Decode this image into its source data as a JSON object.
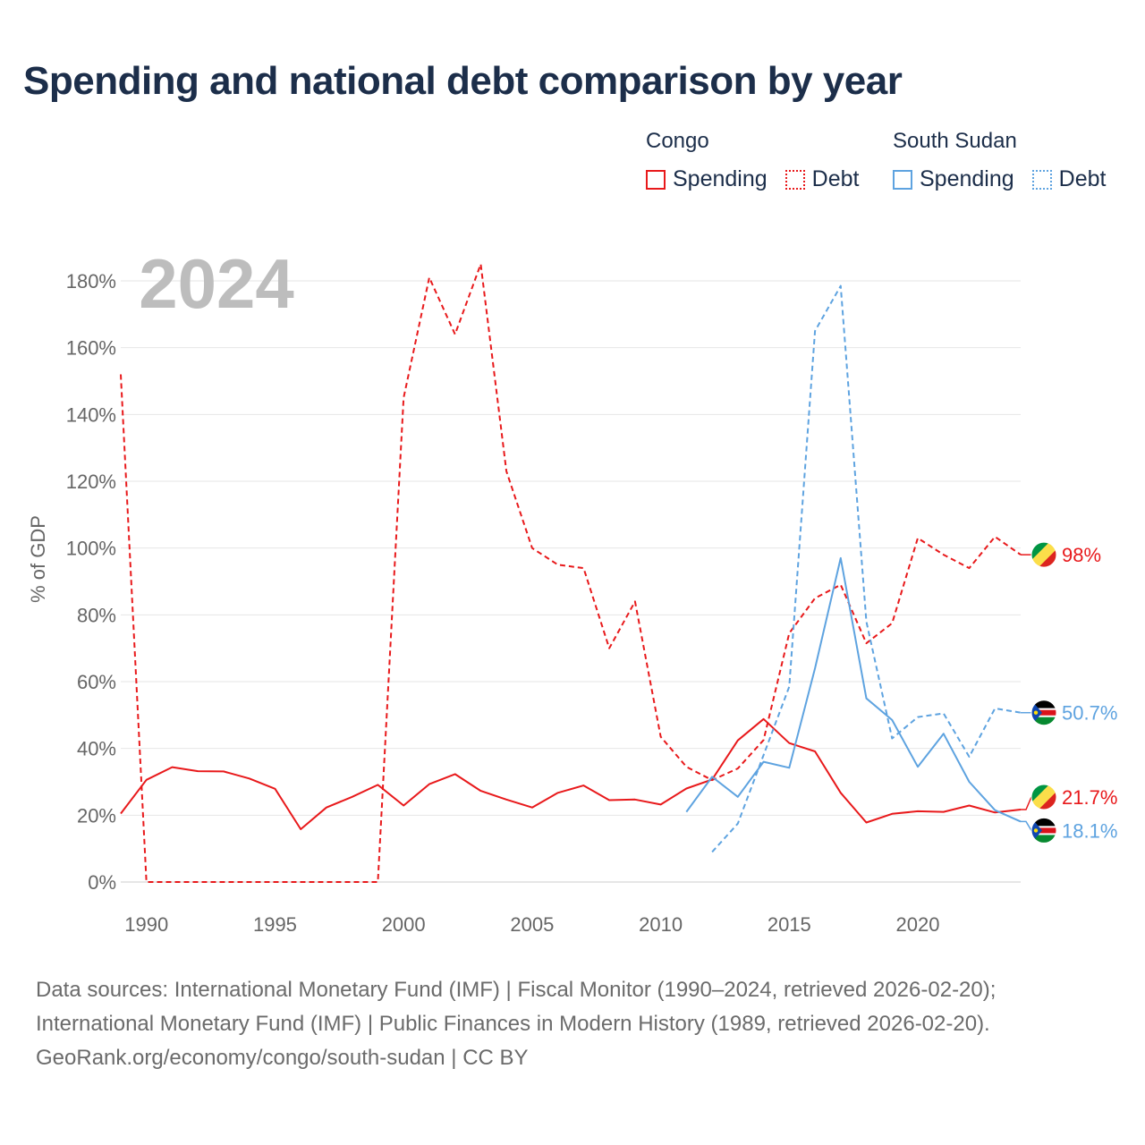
{
  "title": "Spending and national debt comparison by year",
  "legend": {
    "groups": [
      {
        "name": "Congo",
        "color": "#e8191b",
        "items": [
          "Spending",
          "Debt"
        ]
      },
      {
        "name": "South Sudan",
        "color": "#5ea3e0",
        "items": [
          "Spending",
          "Debt"
        ]
      }
    ]
  },
  "source": {
    "line1": "Data sources: International Monetary Fund (IMF) | Fiscal Monitor (1990–2024, retrieved 2026-02-20);",
    "line2": "International Monetary Fund (IMF) | Public Finances in Modern History (1989, retrieved 2026-02-20).",
    "line3": "GeoRank.org/economy/congo/south-sudan | CC BY"
  },
  "chart_data": {
    "type": "line",
    "year_label": "2024",
    "ylabel": "% of GDP",
    "xlim": [
      1989,
      2024
    ],
    "ylim": [
      0,
      180
    ],
    "yticks": [
      0,
      20,
      40,
      60,
      80,
      100,
      120,
      140,
      160,
      180
    ],
    "ytick_labels": [
      "0%",
      "20%",
      "40%",
      "60%",
      "80%",
      "100%",
      "120%",
      "140%",
      "160%",
      "180%"
    ],
    "xticks": [
      1990,
      1995,
      2000,
      2005,
      2010,
      2015,
      2020
    ],
    "xtick_labels": [
      "1990",
      "1995",
      "2000",
      "2005",
      "2010",
      "2015",
      "2020"
    ],
    "series": [
      {
        "name": "Congo Spending",
        "country": "Congo",
        "kind": "Spending",
        "color": "#e8191b",
        "dashed": false,
        "x": [
          1989,
          1990,
          1991,
          1992,
          1993,
          1994,
          1995,
          1996,
          1997,
          1998,
          1999,
          2000,
          2001,
          2002,
          2003,
          2004,
          2005,
          2006,
          2007,
          2008,
          2009,
          2010,
          2011,
          2012,
          2013,
          2014,
          2015,
          2016,
          2017,
          2018,
          2019,
          2020,
          2021,
          2022,
          2023,
          2024
        ],
        "values": [
          20.5,
          30.6,
          34.4,
          33.2,
          33.1,
          31.0,
          27.9,
          15.8,
          22.3,
          25.5,
          29.1,
          22.9,
          29.3,
          32.3,
          27.3,
          24.7,
          22.3,
          26.7,
          28.9,
          24.5,
          24.7,
          23.2,
          28.0,
          30.7,
          42.4,
          48.8,
          41.6,
          39.1,
          26.7,
          17.8,
          20.4,
          21.2,
          21.0,
          22.9,
          20.8,
          21.7
        ],
        "end_label": "21.7%"
      },
      {
        "name": "Congo Debt",
        "country": "Congo",
        "kind": "Debt",
        "color": "#e8191b",
        "dashed": true,
        "x": [
          1989,
          1990,
          1991,
          1992,
          1993,
          1994,
          1995,
          1996,
          1997,
          1998,
          1999,
          2000,
          2001,
          2002,
          2003,
          2004,
          2005,
          2006,
          2007,
          2008,
          2009,
          2010,
          2011,
          2012,
          2013,
          2014,
          2015,
          2016,
          2017,
          2018,
          2019,
          2020,
          2021,
          2022,
          2023,
          2024
        ],
        "values": [
          152,
          0,
          0,
          0,
          0,
          0,
          0,
          0,
          0,
          0,
          0,
          145,
          181,
          164,
          185,
          123,
          100,
          95,
          94,
          70,
          84,
          43.5,
          34.5,
          30.5,
          34,
          42.5,
          74.5,
          85,
          89,
          71.5,
          77.5,
          103,
          98,
          94,
          103.4,
          98
        ],
        "end_label": "98%"
      },
      {
        "name": "South Sudan Spending",
        "country": "South Sudan",
        "kind": "Spending",
        "color": "#5ea3e0",
        "dashed": false,
        "x": [
          2011,
          2012,
          2013,
          2014,
          2015,
          2016,
          2017,
          2018,
          2019,
          2020,
          2021,
          2022,
          2023,
          2024
        ],
        "values": [
          21,
          31.5,
          25.5,
          36,
          34.2,
          64,
          97,
          55,
          48.5,
          34.5,
          44.4,
          30,
          21.5,
          18.1
        ],
        "end_label": "18.1%"
      },
      {
        "name": "South Sudan Debt",
        "country": "South Sudan",
        "kind": "Debt",
        "color": "#5ea3e0",
        "dashed": true,
        "x": [
          2012,
          2013,
          2014,
          2015,
          2016,
          2017,
          2018,
          2019,
          2020,
          2021,
          2022,
          2023,
          2024
        ],
        "values": [
          9,
          17.5,
          38,
          58.5,
          165,
          178.5,
          78,
          43,
          49.4,
          50.5,
          37.5,
          52,
          50.7
        ],
        "end_label": "50.7%"
      }
    ]
  }
}
